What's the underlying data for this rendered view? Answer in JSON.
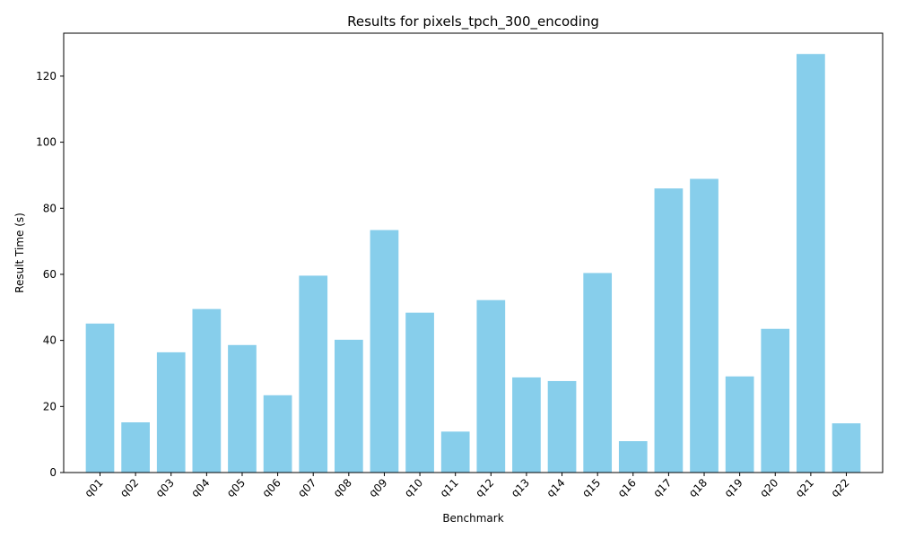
{
  "chart_data": {
    "type": "bar",
    "title": "Results for pixels_tpch_300_encoding",
    "xlabel": "Benchmark",
    "ylabel": "Result Time (s)",
    "categories": [
      "q01",
      "q02",
      "q03",
      "q04",
      "q05",
      "q06",
      "q07",
      "q08",
      "q09",
      "q10",
      "q11",
      "q12",
      "q13",
      "q14",
      "q15",
      "q16",
      "q17",
      "q18",
      "q19",
      "q20",
      "q21",
      "q22"
    ],
    "values": [
      45.1,
      15.2,
      36.4,
      49.5,
      38.6,
      23.4,
      59.6,
      40.2,
      73.4,
      48.4,
      12.4,
      52.2,
      28.8,
      27.7,
      60.4,
      9.5,
      86.0,
      88.9,
      29.1,
      43.5,
      126.7,
      14.9
    ],
    "ylim": [
      0,
      133
    ],
    "yticks": [
      0,
      20,
      40,
      60,
      80,
      100,
      120
    ],
    "bar_color": "#87ceeb",
    "grid": false,
    "legend": "none"
  }
}
